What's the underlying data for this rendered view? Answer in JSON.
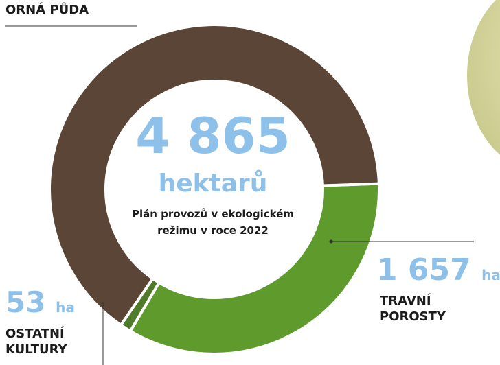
{
  "chart_data": {
    "type": "pie",
    "donut": true,
    "total": 4865,
    "total_label": "4 865",
    "total_unit": "hektarů",
    "subtitle": "Plán provozů v ekologickém režimu v roce 2022",
    "unit": "ha",
    "categories": [
      "TRAVNÍ POROSTY",
      "OSTATNÍ KULTURY",
      "ORNÁ PŮDA"
    ],
    "values": [
      1657,
      53,
      3155
    ],
    "value_labels": [
      "1 657",
      "53",
      null
    ],
    "colors": [
      "#5e9a2c",
      "#4f7b2b",
      "#5a4536"
    ]
  }
}
